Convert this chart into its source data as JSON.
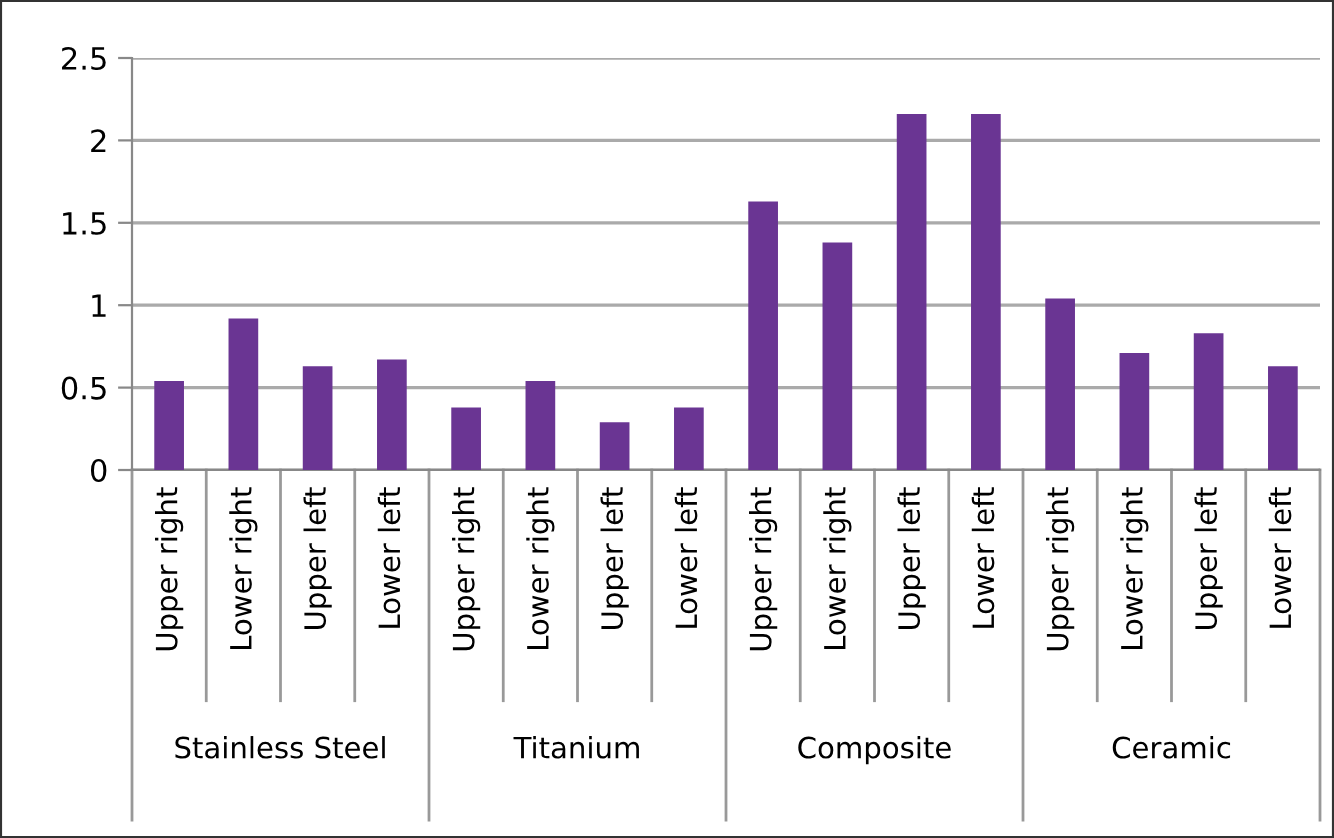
{
  "chart_data": {
    "type": "bar",
    "categories": [
      "Upper right",
      "Lower right",
      "Upper left",
      "Lower left",
      "Upper right",
      "Lower right",
      "Upper left",
      "Lower left",
      "Upper right",
      "Lower right",
      "Upper left",
      "Lower left",
      "Upper right",
      "Lower right",
      "Upper left",
      "Lower left"
    ],
    "values": [
      0.54,
      0.92,
      0.63,
      0.67,
      0.38,
      0.54,
      0.29,
      0.38,
      1.63,
      1.38,
      2.16,
      2.16,
      1.04,
      0.71,
      0.83,
      0.63
    ],
    "color": "#6a3593",
    "ylim": [
      0,
      2.5
    ],
    "yticks": [
      0,
      0.5,
      1,
      1.5,
      2,
      2.5
    ],
    "grid": "y",
    "annotations": [
      "Stainless Steel",
      "Titanium",
      "Composite",
      "Ceramic"
    ]
  }
}
